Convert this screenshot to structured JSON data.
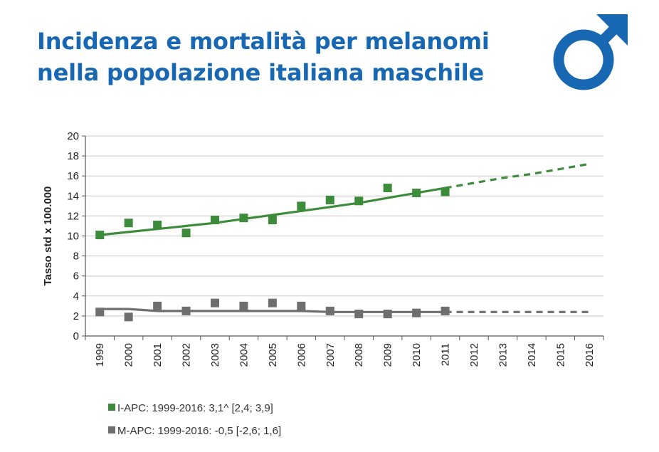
{
  "title": {
    "line1": "Incidenza e mortalità per melanomi",
    "line2": "nella popolazione italiana maschile"
  },
  "icon": "male-symbol-icon",
  "colors": {
    "title": "#1767b3",
    "incidence": "#3c8c3c",
    "mortality": "#6e6e6e"
  },
  "legend": {
    "incidence": "I-APC: 1999-2016: 3,1^ [2,4; 3,9]",
    "mortality": "M-APC: 1999-2016: -0,5 [-2,6; 1,6]"
  },
  "chart_data": {
    "type": "scatter",
    "ylabel": "Tasso std x 100.000",
    "ylim": [
      0,
      20
    ],
    "yticks": [
      0,
      2,
      4,
      6,
      8,
      10,
      12,
      14,
      16,
      18,
      20
    ],
    "x": [
      1999,
      2000,
      2001,
      2002,
      2003,
      2004,
      2005,
      2006,
      2007,
      2008,
      2009,
      2010,
      2011,
      2012,
      2013,
      2014,
      2015,
      2016
    ],
    "grid": true,
    "series": [
      {
        "name": "I-APC: 1999-2016: 3,1^ [2,4; 3,9]",
        "observed": [
          10.1,
          11.3,
          11.1,
          10.3,
          11.6,
          11.8,
          11.6,
          13.0,
          13.6,
          13.5,
          14.8,
          14.3,
          14.4
        ],
        "trend_fitted": [
          10.1,
          10.4,
          10.7,
          11.0,
          11.3,
          11.7,
          12.1,
          12.5,
          12.9,
          13.3,
          13.8,
          14.3,
          14.8
        ],
        "trend_projected": [
          14.8,
          15.3,
          15.8,
          16.2,
          16.7,
          17.2
        ]
      },
      {
        "name": "M-APC: 1999-2016: -0,5 [-2,6; 1,6]",
        "observed": [
          2.4,
          1.9,
          3.0,
          2.5,
          3.3,
          3.0,
          3.3,
          3.0,
          2.5,
          2.2,
          2.2,
          2.3,
          2.5
        ],
        "trend_fitted": [
          2.7,
          2.7,
          2.5,
          2.5,
          2.5,
          2.5,
          2.5,
          2.5,
          2.4,
          2.4,
          2.4,
          2.4,
          2.4
        ],
        "trend_projected": [
          2.4,
          2.4,
          2.4,
          2.4,
          2.4,
          2.4
        ]
      }
    ]
  }
}
